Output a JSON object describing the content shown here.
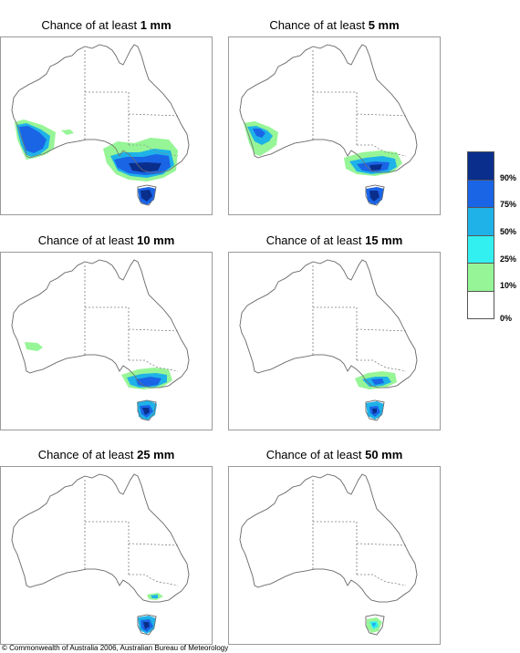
{
  "palette": {
    "band_90": "#0a2e8c",
    "band_75": "#1a64e6",
    "band_50": "#1fb2e8",
    "band_25": "#32f0f0",
    "band_10": "#96f596",
    "band_0": "#ffffff",
    "outline": "#707070",
    "border": "#808080"
  },
  "panels": [
    {
      "title_prefix": "Chance of at least ",
      "amount": "1 mm"
    },
    {
      "title_prefix": "Chance of at least ",
      "amount": "5 mm"
    },
    {
      "title_prefix": "Chance of at least ",
      "amount": "10 mm"
    },
    {
      "title_prefix": "Chance of at least ",
      "amount": "15 mm"
    },
    {
      "title_prefix": "Chance of at least ",
      "amount": "25 mm"
    },
    {
      "title_prefix": "Chance of at least ",
      "amount": "50 mm"
    }
  ],
  "legend": {
    "labels": [
      "90%",
      "75%",
      "50%",
      "25%",
      "10%",
      "0%"
    ],
    "colors": [
      "#0a2e8c",
      "#1a64e6",
      "#1fb2e8",
      "#32f0f0",
      "#96f596",
      "#ffffff"
    ]
  },
  "copyright": "© Commonwealth of Australia 2006, Australian Bureau of Meteorology"
}
